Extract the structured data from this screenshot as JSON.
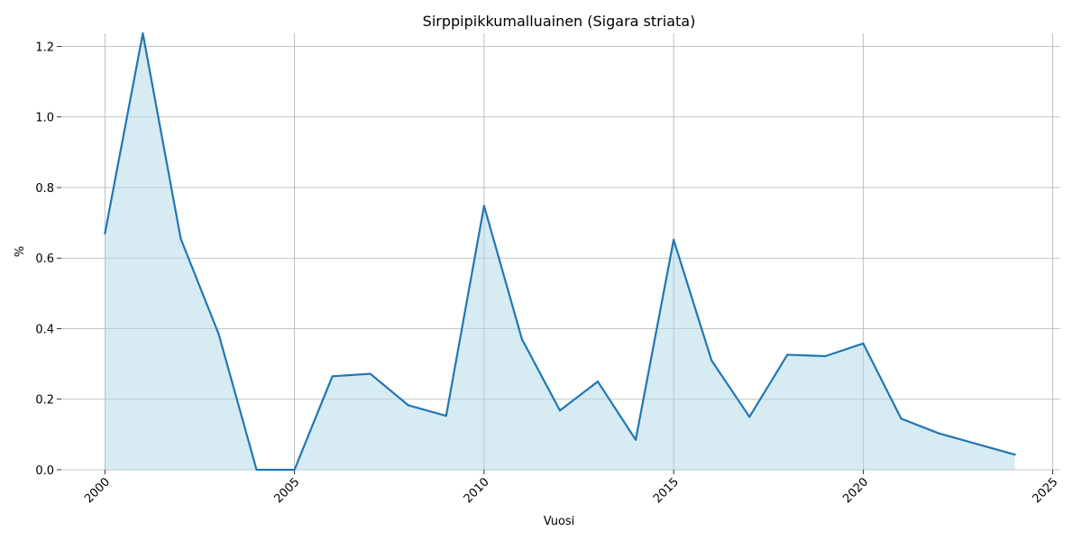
{
  "chart_data": {
    "type": "area",
    "title": "Sirppipikkumalluainen (Sigara striata)",
    "xlabel": "Vuosi",
    "ylabel": "%",
    "xlim": [
      1998.85,
      2025.2
    ],
    "ylim": [
      0,
      1.237
    ],
    "x_ticks": [
      2000,
      2005,
      2010,
      2015,
      2020,
      2025
    ],
    "x_tick_labels": [
      "2000",
      "2005",
      "2010",
      "2015",
      "2020",
      "2025"
    ],
    "y_ticks": [
      0.0,
      0.2,
      0.4,
      0.6,
      0.8,
      1.0,
      1.2
    ],
    "y_tick_labels": [
      "0.0",
      "0.2",
      "0.4",
      "0.6",
      "0.8",
      "1.0",
      "1.2"
    ],
    "grid": true,
    "legend": "none",
    "line_color": "#1f77b4",
    "fill_color": "#add8e6",
    "x": [
      2000,
      2001,
      2002,
      2003,
      2004,
      2005,
      2006,
      2007,
      2008,
      2009,
      2010,
      2011,
      2012,
      2013,
      2014,
      2015,
      2016,
      2017,
      2018,
      2019,
      2020,
      2021,
      2022,
      2023,
      2024
    ],
    "values": [
      0.67,
      1.237,
      0.655,
      0.385,
      0.0,
      0.0,
      0.265,
      0.272,
      0.183,
      0.153,
      0.748,
      0.37,
      0.168,
      0.25,
      0.085,
      0.652,
      0.31,
      0.15,
      0.326,
      0.322,
      0.358,
      0.145,
      0.103,
      0.073,
      0.043
    ]
  }
}
